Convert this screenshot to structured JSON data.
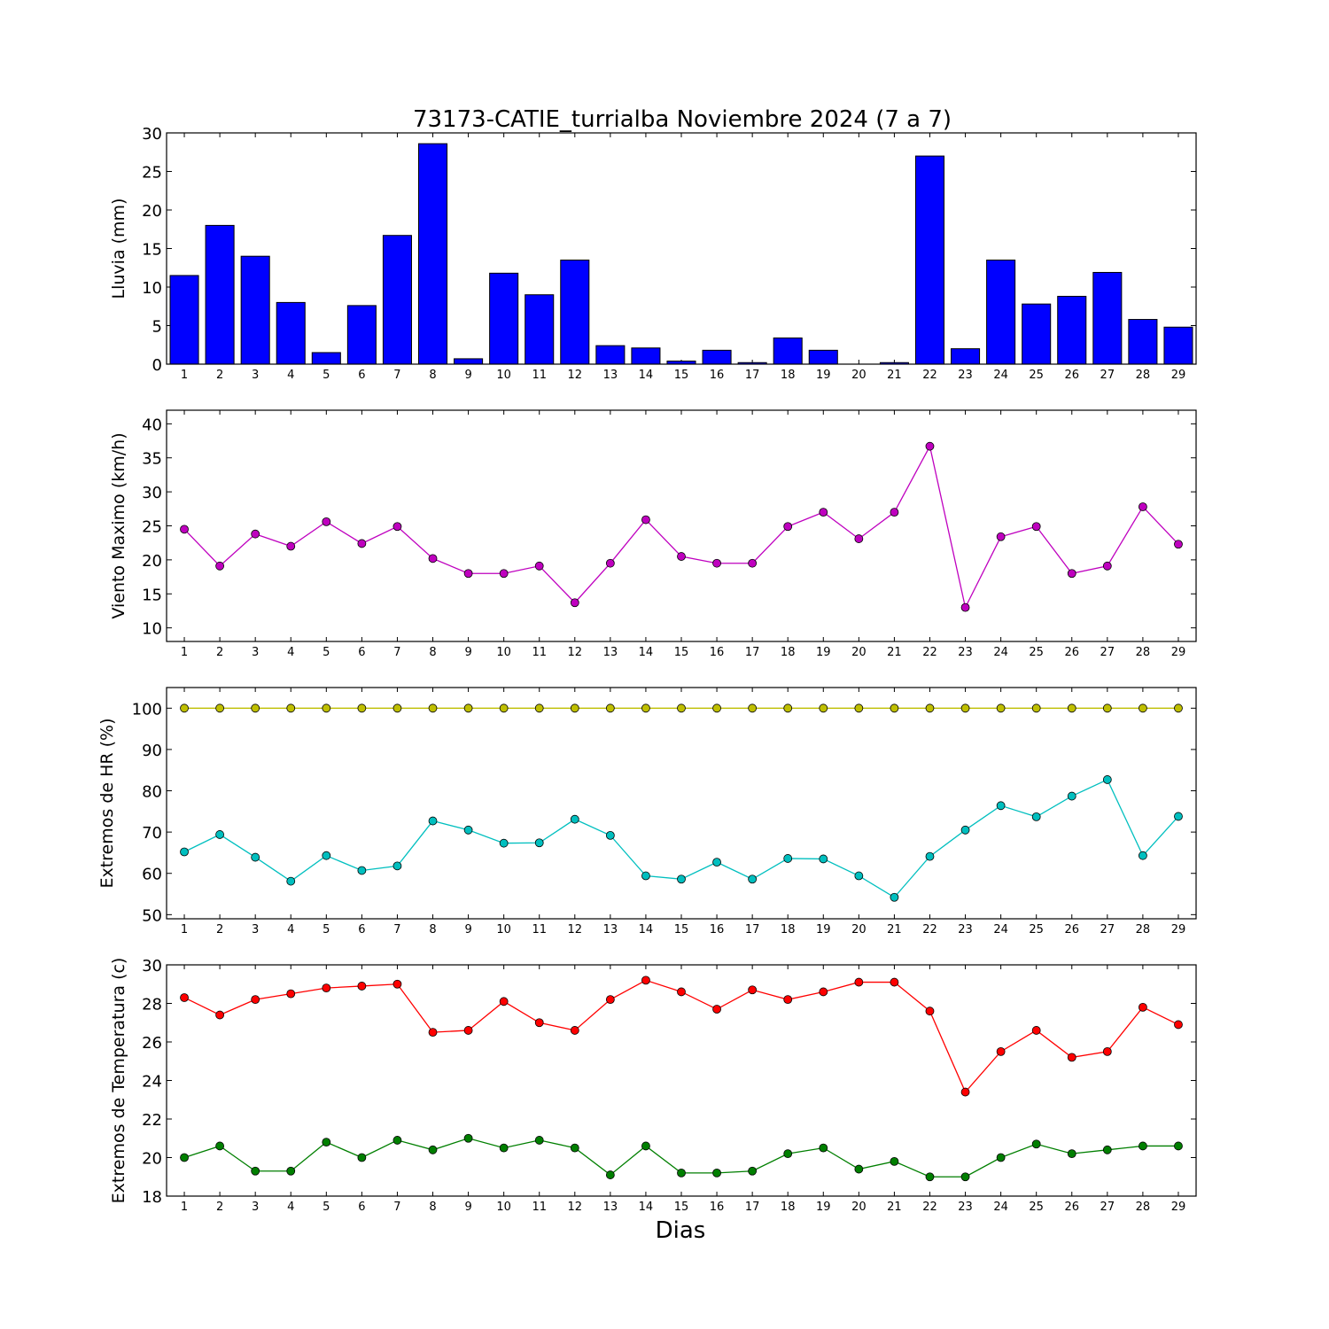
{
  "title": "73173-CATIE_turrialba Noviembre 2024  (7 a 7)",
  "xlabel": "Dias",
  "chart_data": [
    {
      "type": "bar",
      "ylabel": "Lluvia (mm)",
      "ylim": [
        0,
        30
      ],
      "yticks": [
        0,
        5,
        10,
        15,
        20,
        25,
        30
      ],
      "categories": [
        1,
        2,
        3,
        4,
        5,
        6,
        7,
        8,
        9,
        10,
        11,
        12,
        13,
        14,
        15,
        16,
        17,
        18,
        19,
        20,
        21,
        22,
        23,
        24,
        25,
        26,
        27,
        28,
        29
      ],
      "series": [
        {
          "color": "#0000ff",
          "values": [
            11.5,
            18.0,
            14.0,
            8.0,
            1.5,
            7.6,
            16.7,
            28.6,
            0.7,
            11.8,
            9.0,
            13.5,
            2.4,
            2.1,
            0.4,
            1.8,
            0.2,
            3.4,
            1.8,
            0.0,
            0.2,
            27.0,
            2.0,
            13.5,
            7.8,
            8.8,
            11.9,
            5.8,
            4.8
          ]
        }
      ]
    },
    {
      "type": "line",
      "ylabel": "Viento Maximo (km/h)",
      "ylim": [
        8,
        42
      ],
      "yticks": [
        10,
        15,
        20,
        25,
        30,
        35,
        40
      ],
      "categories": [
        1,
        2,
        3,
        4,
        5,
        6,
        7,
        8,
        9,
        10,
        11,
        12,
        13,
        14,
        15,
        16,
        17,
        18,
        19,
        20,
        21,
        22,
        23,
        24,
        25,
        26,
        27,
        28,
        29
      ],
      "series": [
        {
          "color": "#bf00bf",
          "values": [
            24.5,
            19.1,
            23.8,
            22.0,
            25.6,
            22.4,
            24.9,
            20.2,
            18.0,
            18.0,
            19.1,
            13.7,
            19.5,
            25.9,
            20.5,
            19.5,
            19.5,
            24.9,
            27.0,
            23.1,
            27.0,
            36.7,
            13.0,
            23.4,
            24.9,
            18.0,
            19.1,
            27.8,
            22.3
          ]
        }
      ]
    },
    {
      "type": "line",
      "ylabel": "Extremos de HR (%)",
      "ylim": [
        49,
        105
      ],
      "yticks": [
        50,
        60,
        70,
        80,
        90,
        100
      ],
      "categories": [
        1,
        2,
        3,
        4,
        5,
        6,
        7,
        8,
        9,
        10,
        11,
        12,
        13,
        14,
        15,
        16,
        17,
        18,
        19,
        20,
        21,
        22,
        23,
        24,
        25,
        26,
        27,
        28,
        29
      ],
      "series": [
        {
          "color": "#bfbf00",
          "values": [
            100,
            100,
            100,
            100,
            100,
            100,
            100,
            100,
            100,
            100,
            100,
            100,
            100,
            100,
            100,
            100,
            100,
            100,
            100,
            100,
            100,
            100,
            100,
            100,
            100,
            100,
            100,
            100,
            100
          ]
        },
        {
          "color": "#00bfbf",
          "values": [
            65.2,
            69.4,
            63.9,
            58.1,
            64.3,
            60.7,
            61.8,
            72.7,
            70.5,
            67.3,
            67.4,
            73.1,
            69.2,
            59.4,
            58.6,
            62.7,
            58.6,
            63.6,
            63.5,
            59.4,
            54.2,
            64.1,
            70.5,
            76.4,
            73.7,
            78.7,
            82.7,
            64.3,
            73.8
          ]
        }
      ]
    },
    {
      "type": "line",
      "ylabel": "Extremos de Temperatura (c)",
      "ylim": [
        18,
        30
      ],
      "yticks": [
        18,
        20,
        22,
        24,
        26,
        28,
        30
      ],
      "categories": [
        1,
        2,
        3,
        4,
        5,
        6,
        7,
        8,
        9,
        10,
        11,
        12,
        13,
        14,
        15,
        16,
        17,
        18,
        19,
        20,
        21,
        22,
        23,
        24,
        25,
        26,
        27,
        28,
        29
      ],
      "series": [
        {
          "color": "#ff0000",
          "values": [
            28.3,
            27.4,
            28.2,
            28.5,
            28.8,
            28.9,
            29.0,
            26.5,
            26.6,
            28.1,
            27.0,
            26.6,
            28.2,
            29.2,
            28.6,
            27.7,
            28.7,
            28.2,
            28.6,
            29.1,
            29.1,
            27.6,
            23.4,
            25.5,
            26.6,
            25.2,
            25.5,
            27.8,
            26.9
          ]
        },
        {
          "color": "#007f00",
          "values": [
            20.0,
            20.6,
            19.3,
            19.3,
            20.8,
            20.0,
            20.9,
            20.4,
            21.0,
            20.5,
            20.9,
            20.5,
            19.1,
            20.6,
            19.2,
            19.2,
            19.3,
            20.2,
            20.5,
            19.4,
            19.8,
            19.0,
            19.0,
            20.0,
            20.7,
            20.2,
            20.4,
            20.6,
            20.6
          ]
        }
      ]
    }
  ]
}
